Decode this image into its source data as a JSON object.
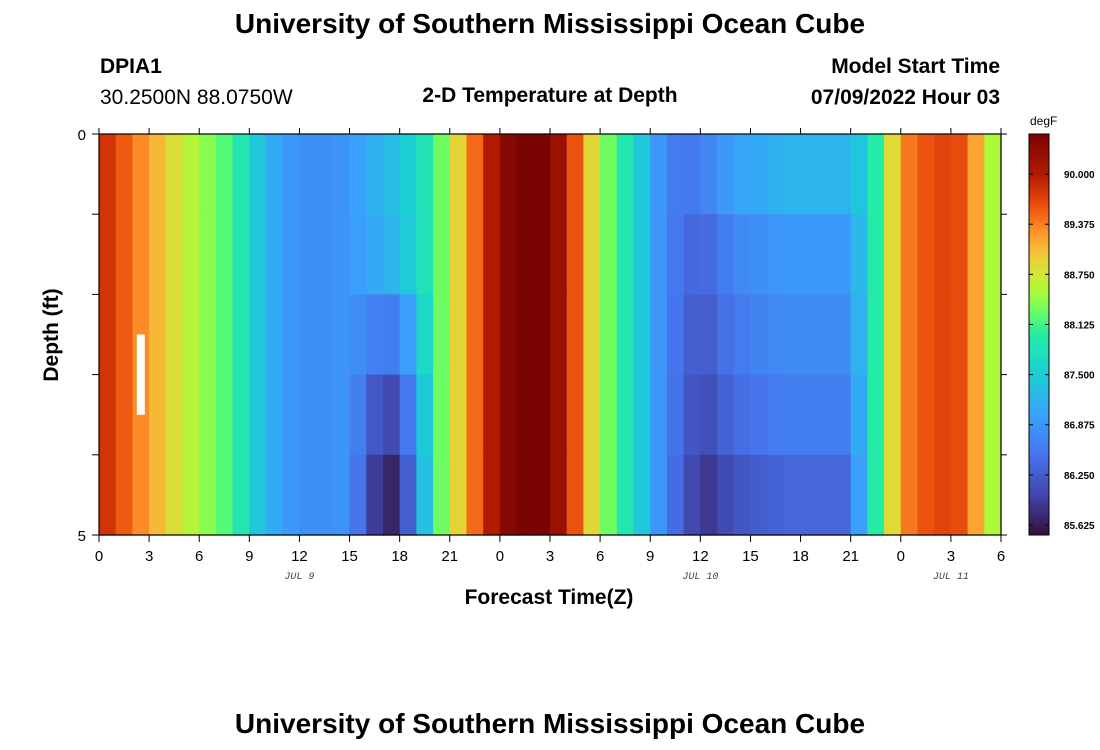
{
  "header": {
    "title": "University of Southern Mississippi Ocean Cube",
    "station_id": "DPIA1",
    "coordinates": "30.2500N  88.0750W",
    "subtitle": "2-D Temperature at Depth",
    "model_start_label": "Model Start Time",
    "model_start_value": "07/09/2022 Hour 03"
  },
  "footer": {
    "title": "University of Southern Mississippi Ocean Cube"
  },
  "chart_data": {
    "type": "heatmap",
    "title": "2-D Temperature at Depth",
    "xlabel": "Forecast Time(Z)",
    "ylabel": "Depth (ft)",
    "xlim": [
      0,
      54
    ],
    "ylim": [
      0,
      5
    ],
    "x_tick_values": [
      0,
      3,
      6,
      9,
      12,
      15,
      18,
      21,
      24,
      27,
      30,
      33,
      36,
      39,
      42,
      45,
      48,
      51,
      54
    ],
    "x_tick_labels": [
      "0",
      "3",
      "6",
      "9",
      "12",
      "15",
      "18",
      "21",
      "0",
      "3",
      "6",
      "9",
      "12",
      "15",
      "18",
      "21",
      "0",
      "3",
      "6"
    ],
    "y_tick_labels": [
      "0",
      "5"
    ],
    "date_labels": [
      {
        "hour": 12,
        "text": "JUL 9"
      },
      {
        "hour": 36,
        "text": "JUL 10"
      },
      {
        "hour": 51,
        "text": "JUL 11"
      }
    ],
    "depth_bins": 5,
    "hour_columns": 54,
    "layer_offsets_first_day": [
      0.15,
      0.05,
      -0.55,
      -1.1,
      -1.45
    ],
    "layer_offsets_second_day": [
      0.3,
      0.0,
      -0.15,
      -0.3,
      -0.55
    ],
    "surface_temperature_keypoints": [
      {
        "hour": 0,
        "value": 89.9
      },
      {
        "hour": 3,
        "value": 89.2
      },
      {
        "hour": 5,
        "value": 88.7
      },
      {
        "hour": 8,
        "value": 88.1
      },
      {
        "hour": 10,
        "value": 87.2
      },
      {
        "hour": 12,
        "value": 86.8
      },
      {
        "hour": 14,
        "value": 86.8
      },
      {
        "hour": 16,
        "value": 87.0
      },
      {
        "hour": 18,
        "value": 87.2
      },
      {
        "hour": 20,
        "value": 88.0
      },
      {
        "hour": 22,
        "value": 89.2
      },
      {
        "hour": 23.5,
        "value": 90.0
      },
      {
        "hour": 25,
        "value": 90.6
      },
      {
        "hour": 27,
        "value": 90.5
      },
      {
        "hour": 28.5,
        "value": 89.6
      },
      {
        "hour": 30,
        "value": 88.5
      },
      {
        "hour": 32,
        "value": 87.7
      },
      {
        "hour": 34,
        "value": 86.6
      },
      {
        "hour": 36,
        "value": 86.3
      },
      {
        "hour": 38,
        "value": 86.7
      },
      {
        "hour": 41,
        "value": 86.9
      },
      {
        "hour": 45,
        "value": 86.9
      },
      {
        "hour": 46,
        "value": 87.6
      },
      {
        "hour": 47,
        "value": 88.4
      },
      {
        "hour": 48,
        "value": 89.3
      },
      {
        "hour": 50,
        "value": 89.7
      },
      {
        "hour": 52,
        "value": 89.6
      },
      {
        "hour": 53,
        "value": 88.8
      },
      {
        "hour": 54,
        "value": 88.3
      }
    ],
    "colorbar": {
      "unit": "degF",
      "min": 85.5,
      "max": 90.5,
      "tick_values": [
        90.0,
        89.375,
        88.75,
        88.125,
        87.5,
        86.875,
        86.25,
        85.625
      ],
      "tick_labels": [
        "90.000",
        "89.375",
        "88.750",
        "88.125",
        "87.500",
        "86.875",
        "86.250",
        "85.625"
      ]
    },
    "marker": {
      "hour": 2.5,
      "depth_from": 2.5,
      "depth_to": 3.5,
      "color": "#ffffff"
    }
  }
}
